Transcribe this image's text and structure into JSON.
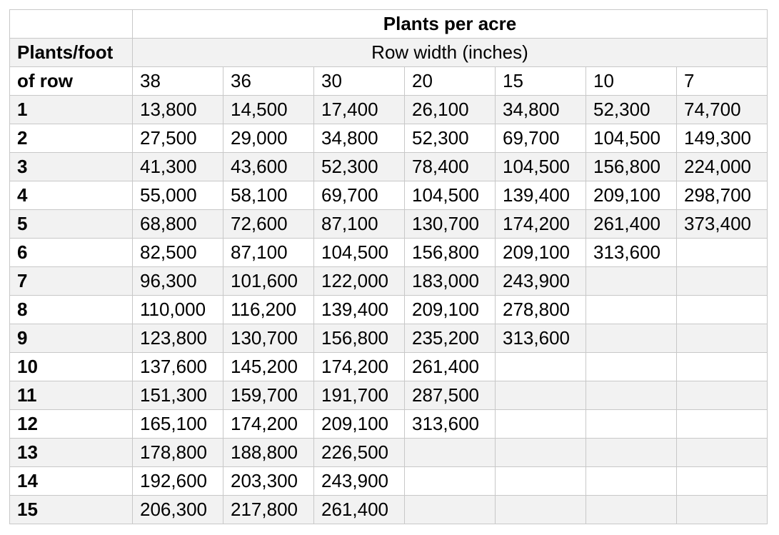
{
  "table": {
    "title": "Plants per acre",
    "subtitle": "Row width (inches)",
    "row_header_line1": "Plants/foot",
    "row_header_line2": "of row",
    "columns": [
      "38",
      "36",
      "30",
      "20",
      "15",
      "10",
      "7"
    ],
    "rows": [
      {
        "label": "1",
        "values": [
          "13,800",
          "14,500",
          "17,400",
          "26,100",
          "34,800",
          "52,300",
          "74,700"
        ]
      },
      {
        "label": "2",
        "values": [
          "27,500",
          "29,000",
          "34,800",
          "52,300",
          "69,700",
          "104,500",
          "149,300"
        ]
      },
      {
        "label": "3",
        "values": [
          "41,300",
          "43,600",
          "52,300",
          "78,400",
          "104,500",
          "156,800",
          "224,000"
        ]
      },
      {
        "label": "4",
        "values": [
          "55,000",
          "58,100",
          "69,700",
          "104,500",
          "139,400",
          "209,100",
          "298,700"
        ]
      },
      {
        "label": "5",
        "values": [
          "68,800",
          "72,600",
          "87,100",
          "130,700",
          "174,200",
          "261,400",
          "373,400"
        ]
      },
      {
        "label": "6",
        "values": [
          "82,500",
          "87,100",
          "104,500",
          "156,800",
          "209,100",
          "313,600",
          ""
        ]
      },
      {
        "label": "7",
        "values": [
          "96,300",
          "101,600",
          "122,000",
          "183,000",
          "243,900",
          "",
          ""
        ]
      },
      {
        "label": "8",
        "values": [
          "110,000",
          "116,200",
          "139,400",
          "209,100",
          "278,800",
          "",
          ""
        ]
      },
      {
        "label": "9",
        "values": [
          "123,800",
          "130,700",
          "156,800",
          "235,200",
          "313,600",
          "",
          ""
        ]
      },
      {
        "label": "10",
        "values": [
          "137,600",
          "145,200",
          "174,200",
          "261,400",
          "",
          "",
          ""
        ]
      },
      {
        "label": "11",
        "values": [
          "151,300",
          "159,700",
          "191,700",
          "287,500",
          "",
          "",
          ""
        ]
      },
      {
        "label": "12",
        "values": [
          "165,100",
          "174,200",
          "209,100",
          "313,600",
          "",
          "",
          ""
        ]
      },
      {
        "label": "13",
        "values": [
          "178,800",
          "188,800",
          "226,500",
          "",
          "",
          "",
          ""
        ]
      },
      {
        "label": "14",
        "values": [
          "192,600",
          "203,300",
          "243,900",
          "",
          "",
          "",
          ""
        ]
      },
      {
        "label": "15",
        "values": [
          "206,300",
          "217,800",
          "261,400",
          "",
          "",
          "",
          ""
        ]
      }
    ]
  }
}
